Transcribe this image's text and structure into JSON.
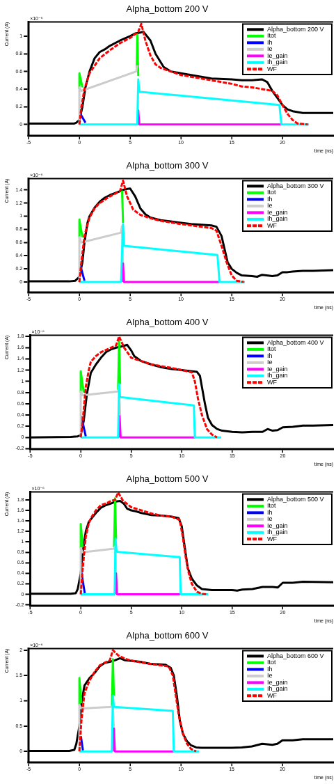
{
  "chart_data": [
    {
      "type": "line",
      "title": "Alpha_bottom 200 V",
      "xlabel": "time (ns)",
      "ylabel": "Current (A)",
      "annotations": [
        "×10⁻⁶"
      ],
      "xlim": [
        -5,
        25
      ],
      "xticks": [
        -5,
        0,
        5,
        10,
        15,
        20
      ],
      "ylim": [
        -0.13,
        1.16
      ],
      "yticks": [
        0,
        0.2,
        0.4,
        0.6,
        0.8,
        1
      ],
      "grid": false,
      "legend": "top right",
      "series": [
        {
          "name": "Alpha_bottom 200 V",
          "color": "#000000",
          "line_style": "solid",
          "x": [
            -5,
            -2,
            -0.5,
            -0.3,
            0,
            0.3,
            0.6,
            1,
            1.5,
            2,
            2.5,
            3,
            4,
            5,
            5.5,
            6,
            6.3,
            7,
            7.5,
            8.3,
            9,
            10,
            12,
            13,
            15,
            16,
            17,
            18,
            18.5,
            19,
            19.5,
            20,
            20.5,
            21,
            22,
            23,
            25
          ],
          "values": [
            0.01,
            0.01,
            0.01,
            0.02,
            0.05,
            0.2,
            0.42,
            0.6,
            0.75,
            0.82,
            0.85,
            0.89,
            0.95,
            1.0,
            1.03,
            1.04,
            1.05,
            0.95,
            0.8,
            0.65,
            0.6,
            0.58,
            0.54,
            0.52,
            0.51,
            0.5,
            0.5,
            0.51,
            0.48,
            0.38,
            0.3,
            0.22,
            0.17,
            0.15,
            0.13,
            0.13,
            0.13
          ]
        },
        {
          "name": "Itot",
          "color": "#00ff00",
          "line_style": "solid",
          "x": [
            0,
            0,
            0.3,
            0.31,
            5.65,
            5.7,
            5.8
          ],
          "values": [
            0.4,
            0.58,
            0.42,
            null,
            0.61,
            1.02,
            0.55
          ]
        },
        {
          "name": "Ih",
          "color": "#0000ff",
          "line_style": "solid",
          "x": [
            0.1,
            0.6
          ],
          "values": [
            0.12,
            0.02
          ]
        },
        {
          "name": "Ie",
          "color": "#cccccc",
          "line_style": "solid",
          "x": [
            0,
            0,
            0.2,
            5.6,
            5.7
          ],
          "values": [
            0,
            0.42,
            0.38,
            0.6,
            0.67
          ]
        },
        {
          "name": "Ie_gain",
          "color": "#ff00ff",
          "line_style": "solid",
          "x": [
            5.8,
            5.8,
            5.9,
            19.9
          ],
          "values": [
            0,
            0.16,
            0,
            0
          ]
        },
        {
          "name": "Ih_gain",
          "color": "#00ffff",
          "line_style": "solid",
          "x": [
            0,
            5.7,
            5.8,
            5.9,
            19.7,
            19.9,
            22.6
          ],
          "values": [
            0,
            0,
            0.51,
            0.37,
            0.22,
            0,
            0
          ]
        },
        {
          "name": "WF",
          "color": "#ff0000",
          "line_style": "dashed",
          "x": [
            0,
            0.2,
            0.5,
            1,
            2,
            3,
            4,
            5,
            5.8,
            6.1,
            6.5,
            7,
            7.5,
            8,
            9,
            10,
            12,
            14,
            15,
            16,
            17,
            18,
            19,
            19.5,
            20,
            20.5,
            21,
            21.5,
            22.5
          ],
          "values": [
            0,
            0.2,
            0.4,
            0.58,
            0.75,
            0.84,
            0.92,
            0.98,
            1.05,
            1.14,
            0.95,
            0.78,
            0.68,
            0.64,
            0.6,
            0.56,
            0.52,
            0.48,
            0.46,
            0.43,
            0.42,
            0.4,
            0.38,
            0.33,
            0.22,
            0.12,
            0.05,
            0.01,
            0
          ]
        }
      ]
    },
    {
      "type": "line",
      "title": "Alpha_bottom 300 V",
      "xlabel": "time (ns)",
      "ylabel": "Current (A)",
      "annotations": [
        "×10⁻⁶"
      ],
      "xlim": [
        -5,
        25
      ],
      "xticks": [
        -5,
        0,
        5,
        10,
        15,
        20
      ],
      "ylim": [
        -0.16,
        1.57
      ],
      "yticks": [
        0,
        0.2,
        0.4,
        0.6,
        0.8,
        1,
        1.2,
        1.4
      ],
      "grid": false,
      "legend": "top right",
      "series": [
        {
          "name": "Alpha_bottom 300 V",
          "color": "#000000",
          "line_style": "solid",
          "x": [
            -5,
            -1,
            -0.4,
            0,
            0.3,
            0.5,
            0.8,
            1,
            1.5,
            2,
            2.5,
            3,
            3.5,
            4,
            4.5,
            5,
            5.5,
            6,
            6.5,
            7,
            8,
            9,
            10,
            11,
            12,
            13,
            13.5,
            14,
            14.3,
            14.6,
            15,
            15.5,
            16,
            17,
            17.5,
            18,
            19,
            19.5,
            20,
            20.5,
            21,
            22,
            23,
            25
          ],
          "values": [
            0.01,
            0.01,
            0.02,
            0.08,
            0.3,
            0.6,
            0.9,
            1.0,
            1.13,
            1.22,
            1.28,
            1.32,
            1.35,
            1.38,
            1.41,
            1.42,
            1.3,
            1.12,
            1.03,
            0.98,
            0.94,
            0.92,
            0.9,
            0.88,
            0.87,
            0.86,
            0.84,
            0.7,
            0.5,
            0.3,
            0.2,
            0.14,
            0.1,
            0.09,
            0.08,
            0.11,
            0.09,
            0.1,
            0.15,
            0.15,
            0.16,
            0.17,
            0.17,
            0.18
          ]
        },
        {
          "name": "Itot",
          "color": "#00ff00",
          "line_style": "solid",
          "x": [
            0,
            0,
            0.3,
            0.31,
            4.1,
            4.2,
            4.3
          ],
          "values": [
            0.68,
            0.95,
            0.68,
            null,
            null,
            1.39,
            0.9
          ]
        },
        {
          "name": "Ih",
          "color": "#0000ff",
          "line_style": "solid",
          "x": [
            0.05,
            0.5
          ],
          "values": [
            0.28,
            0.02
          ]
        },
        {
          "name": "Ie",
          "color": "#cccccc",
          "line_style": "solid",
          "x": [
            0,
            0,
            0.2,
            4.1,
            4.2,
            4.3
          ],
          "values": [
            0,
            0.68,
            0.6,
            0.75,
            0.85,
            0.25
          ]
        },
        {
          "name": "Ie_gain",
          "color": "#ff00ff",
          "line_style": "solid",
          "x": [
            4.3,
            4.3,
            4.4,
            13.8
          ],
          "values": [
            0,
            0.28,
            0,
            0
          ]
        },
        {
          "name": "Ih_gain",
          "color": "#00ffff",
          "line_style": "solid",
          "x": [
            0,
            4.1,
            4.3,
            4.4,
            13.6,
            13.8,
            16.3
          ],
          "values": [
            0,
            0,
            0.88,
            0.55,
            0.41,
            0,
            0
          ]
        },
        {
          "name": "WF",
          "color": "#ff0000",
          "line_style": "dashed",
          "x": [
            0,
            0.2,
            0.5,
            1,
            1.5,
            2,
            3,
            4,
            4.3,
            4.7,
            5.3,
            6,
            7,
            8,
            10,
            12,
            13,
            13.5,
            14,
            14.5,
            15,
            15.5,
            16.2
          ],
          "values": [
            0,
            0.3,
            0.7,
            0.98,
            1.12,
            1.2,
            1.3,
            1.38,
            1.54,
            1.3,
            1.1,
            1.02,
            0.97,
            0.93,
            0.88,
            0.84,
            0.82,
            0.78,
            0.55,
            0.3,
            0.1,
            0.02,
            0
          ]
        }
      ]
    },
    {
      "type": "line",
      "title": "Alpha_bottom 400 V",
      "xlabel": "time (ns)",
      "ylabel": "Current (A)",
      "annotations": [
        "×10⁻⁶"
      ],
      "xlim": [
        -5,
        25
      ],
      "xticks": [
        -5,
        0,
        5,
        10,
        15,
        20
      ],
      "ylim": [
        -0.21,
        1.82
      ],
      "yticks": [
        -0.2,
        0,
        0.2,
        0.4,
        0.6,
        0.8,
        1,
        1.2,
        1.4,
        1.6,
        1.8
      ],
      "grid": false,
      "legend": "top right",
      "series": [
        {
          "name": "Alpha_bottom 400 V",
          "color": "#000000",
          "line_style": "solid",
          "x": [
            -5,
            -1,
            -0.3,
            0,
            0.3,
            0.6,
            1,
            1.5,
            2,
            2.5,
            3,
            3.5,
            4,
            4.6,
            5,
            5.3,
            6,
            7,
            8,
            9,
            10,
            11,
            11.5,
            11.8,
            12,
            12.3,
            12.6,
            13,
            13.5,
            14,
            15,
            16,
            17,
            18,
            18.5,
            19,
            19.5,
            20,
            21,
            22,
            23,
            25
          ],
          "values": [
            0,
            0.01,
            0.02,
            0.04,
            0.3,
            0.76,
            1.15,
            1.3,
            1.42,
            1.52,
            1.57,
            1.6,
            1.62,
            1.65,
            1.55,
            1.45,
            1.36,
            1.3,
            1.25,
            1.22,
            1.2,
            1.18,
            1.17,
            1.1,
            0.9,
            0.6,
            0.35,
            0.22,
            0.15,
            0.12,
            0.1,
            0.09,
            0.1,
            0.1,
            0.15,
            0.12,
            0.13,
            0.18,
            0.19,
            0.21,
            0.21,
            0.22
          ]
        },
        {
          "name": "Itot",
          "color": "#00ff00",
          "line_style": "solid",
          "x": [
            0,
            0,
            0.3,
            0.31,
            3.7,
            3.8,
            3.9
          ],
          "values": [
            0.8,
            1.18,
            0.8,
            null,
            0.85,
            1.75,
            0.95
          ]
        },
        {
          "name": "Ih",
          "color": "#0000ff",
          "line_style": "solid",
          "x": [
            0.05,
            0.5
          ],
          "values": [
            0.38,
            0.02
          ]
        },
        {
          "name": "Ie",
          "color": "#cccccc",
          "line_style": "solid",
          "x": [
            0,
            0,
            0.2,
            3.7,
            3.8,
            3.9
          ],
          "values": [
            0,
            0.82,
            0.75,
            0.82,
            0.9,
            0.38
          ]
        },
        {
          "name": "Ie_gain",
          "color": "#ff00ff",
          "line_style": "solid",
          "x": [
            3.85,
            3.85,
            3.95,
            11.3
          ],
          "values": [
            0,
            0.38,
            0,
            0
          ]
        },
        {
          "name": "Ih_gain",
          "color": "#00ffff",
          "line_style": "solid",
          "x": [
            0,
            3.7,
            3.8,
            3.9,
            11.2,
            11.3,
            13.9
          ],
          "values": [
            0,
            0,
            0.95,
            0.72,
            0.57,
            0,
            0
          ]
        },
        {
          "name": "WF",
          "color": "#ff0000",
          "line_style": "dashed",
          "x": [
            0,
            0.2,
            0.5,
            0.8,
            1,
            1.5,
            2,
            3,
            3.5,
            3.8,
            4.3,
            5,
            6,
            7,
            9,
            10,
            11,
            11.3,
            11.6,
            12,
            12.5,
            13,
            13.5
          ],
          "values": [
            0,
            0.3,
            0.9,
            1.2,
            1.35,
            1.45,
            1.52,
            1.6,
            1.64,
            1.8,
            1.6,
            1.42,
            1.36,
            1.3,
            1.24,
            1.2,
            1.16,
            1.0,
            0.7,
            0.4,
            0.15,
            0.05,
            0
          ]
        }
      ]
    },
    {
      "type": "line",
      "title": "Alpha_bottom 500 V",
      "xlabel": "time (ns)",
      "ylabel": "Current (A)",
      "annotations": [
        "×10⁻⁶"
      ],
      "xlim": [
        -5,
        25
      ],
      "xticks": [
        -5,
        0,
        5,
        10,
        15,
        20
      ],
      "ylim": [
        -0.22,
        1.95
      ],
      "yticks": [
        -0.2,
        0,
        0.2,
        0.4,
        0.6,
        0.8,
        1,
        1.2,
        1.4,
        1.6,
        1.8
      ],
      "grid": false,
      "legend": "top right",
      "series": [
        {
          "name": "Alpha_bottom 500 V",
          "color": "#000000",
          "line_style": "solid",
          "x": [
            -5,
            -1,
            -0.5,
            -0.3,
            0,
            0.2,
            0.5,
            0.8,
            1,
            1.5,
            2,
            2.5,
            3,
            3.5,
            3.9,
            4.3,
            4.6,
            5,
            5.5,
            6,
            7,
            8,
            9,
            9.7,
            10,
            10.3,
            10.6,
            11,
            11.5,
            12,
            13,
            15,
            15.5,
            16,
            17,
            18,
            19,
            19.5,
            20,
            21,
            22,
            25
          ],
          "values": [
            0.01,
            0.01,
            0.02,
            0.1,
            0.4,
            0.8,
            1.2,
            1.38,
            1.43,
            1.55,
            1.65,
            1.7,
            1.73,
            1.77,
            1.78,
            1.72,
            1.63,
            1.6,
            1.58,
            1.55,
            1.51,
            1.5,
            1.48,
            1.45,
            1.3,
            0.9,
            0.5,
            0.3,
            0.17,
            0.1,
            0.08,
            0.08,
            0.07,
            0.09,
            0.1,
            0.14,
            0.14,
            0.13,
            0.22,
            0.22,
            0.24,
            0.23
          ]
        },
        {
          "name": "Itot",
          "color": "#00ff00",
          "line_style": "solid",
          "x": [
            0,
            0,
            0.2,
            0.21,
            3.3,
            3.4,
            3.5
          ],
          "values": [
            0.88,
            1.34,
            0.9,
            null,
            0.9,
            1.83,
            1.05
          ]
        },
        {
          "name": "Ih",
          "color": "#0000ff",
          "line_style": "solid",
          "x": [
            0.05,
            0.4
          ],
          "values": [
            0.44,
            0.02
          ]
        },
        {
          "name": "Ie",
          "color": "#cccccc",
          "line_style": "solid",
          "x": [
            0,
            0,
            0.2,
            3.3,
            3.4,
            3.5
          ],
          "values": [
            0,
            0.88,
            0.8,
            0.87,
            0.92,
            0.42
          ]
        },
        {
          "name": "Ie_gain",
          "color": "#ff00ff",
          "line_style": "solid",
          "x": [
            3.5,
            3.5,
            3.6,
            9.9
          ],
          "values": [
            0,
            0.4,
            0,
            0
          ]
        },
        {
          "name": "Ih_gain",
          "color": "#00ffff",
          "line_style": "solid",
          "x": [
            0,
            3.35,
            3.45,
            3.55,
            9.8,
            9.9,
            12.6
          ],
          "values": [
            0,
            0,
            1.06,
            0.81,
            0.71,
            0,
            0
          ]
        },
        {
          "name": "WF",
          "color": "#ff0000",
          "line_style": "dashed",
          "x": [
            0,
            0.2,
            0.5,
            0.8,
            1,
            1.5,
            2,
            2.5,
            3,
            3.4,
            3.7,
            4.2,
            5,
            6,
            7,
            8,
            9,
            9.8,
            10.1,
            10.4,
            10.7,
            11,
            11.5,
            12,
            12.5
          ],
          "values": [
            0,
            0.5,
            1.1,
            1.35,
            1.45,
            1.6,
            1.7,
            1.73,
            1.78,
            1.8,
            1.94,
            1.78,
            1.66,
            1.6,
            1.54,
            1.5,
            1.48,
            1.42,
            1.1,
            0.7,
            0.4,
            0.2,
            0.05,
            0.01,
            0
          ]
        }
      ]
    },
    {
      "type": "line",
      "title": "Alpha_bottom 600 V",
      "xlabel": "time (ns)",
      "ylabel": "Current (A)",
      "annotations": [
        "×10⁻⁶"
      ],
      "xlim": [
        -5,
        25
      ],
      "xticks": [
        -5,
        0,
        5,
        10,
        15,
        20
      ],
      "ylim": [
        -0.22,
        2.03
      ],
      "yticks": [
        0,
        0.5,
        1,
        1.5,
        2
      ],
      "grid": false,
      "legend": "top right",
      "series": [
        {
          "name": "Alpha_bottom 600 V",
          "color": "#000000",
          "line_style": "solid",
          "x": [
            -5,
            -1,
            -0.5,
            -0.3,
            0,
            0.2,
            0.5,
            1,
            1.5,
            2,
            2.5,
            3,
            3.5,
            4,
            4.5,
            5,
            6,
            7,
            8,
            8.5,
            9,
            9.3,
            9.6,
            9.9,
            10.2,
            10.6,
            11,
            11.5,
            12,
            14,
            15,
            16,
            17,
            18,
            19,
            19.5,
            20,
            21,
            22,
            25
          ],
          "values": [
            0.01,
            0.01,
            0.03,
            0.15,
            0.5,
            0.95,
            1.3,
            1.45,
            1.55,
            1.68,
            1.75,
            1.77,
            1.8,
            1.84,
            1.8,
            1.79,
            1.77,
            1.73,
            1.72,
            1.71,
            1.65,
            1.5,
            1.1,
            0.6,
            0.35,
            0.2,
            0.12,
            0.08,
            0.07,
            0.07,
            0.07,
            0.08,
            0.1,
            0.15,
            0.13,
            0.15,
            0.22,
            0.22,
            0.24,
            0.24
          ]
        },
        {
          "name": "Itot",
          "color": "#00ff00",
          "line_style": "solid",
          "x": [
            0,
            0,
            0.2,
            0.21,
            3.2,
            3.3,
            3.4
          ],
          "values": [
            0.92,
            1.45,
            0.95,
            null,
            0.9,
            1.82,
            1.1
          ]
        },
        {
          "name": "Ih",
          "color": "#0000ff",
          "line_style": "solid",
          "x": [
            0.15,
            0.35
          ],
          "values": [
            0.3,
            0.02
          ]
        },
        {
          "name": "Ie",
          "color": "#cccccc",
          "line_style": "solid",
          "x": [
            0,
            0,
            0.2,
            3.2,
            3.3,
            3.4
          ],
          "values": [
            0,
            0.92,
            0.85,
            0.88,
            0.9,
            0.45
          ]
        },
        {
          "name": "Ie_gain",
          "color": "#ff00ff",
          "line_style": "solid",
          "x": [
            3.4,
            3.4,
            3.5,
            9.3
          ],
          "values": [
            0,
            0.45,
            0,
            0
          ]
        },
        {
          "name": "Ih_gain",
          "color": "#00ffff",
          "line_style": "solid",
          "x": [
            0,
            3.2,
            3.3,
            3.4,
            9.2,
            9.3,
            11.8
          ],
          "values": [
            0,
            0,
            1.1,
            0.88,
            0.8,
            0,
            0
          ]
        },
        {
          "name": "WF",
          "color": "#ff0000",
          "line_style": "dashed",
          "x": [
            0,
            0.2,
            0.5,
            1,
            1.5,
            2,
            2.5,
            3,
            3.3,
            3.8,
            4.5,
            5,
            6,
            7,
            8,
            8.8,
            9.2,
            9.5,
            9.8,
            10.2,
            10.6,
            11,
            11.5
          ],
          "values": [
            0,
            0.6,
            1.15,
            1.4,
            1.57,
            1.7,
            1.75,
            1.8,
            2.0,
            1.9,
            1.83,
            1.8,
            1.76,
            1.73,
            1.7,
            1.68,
            1.5,
            1.1,
            0.7,
            0.35,
            0.15,
            0.05,
            0
          ]
        }
      ]
    }
  ]
}
